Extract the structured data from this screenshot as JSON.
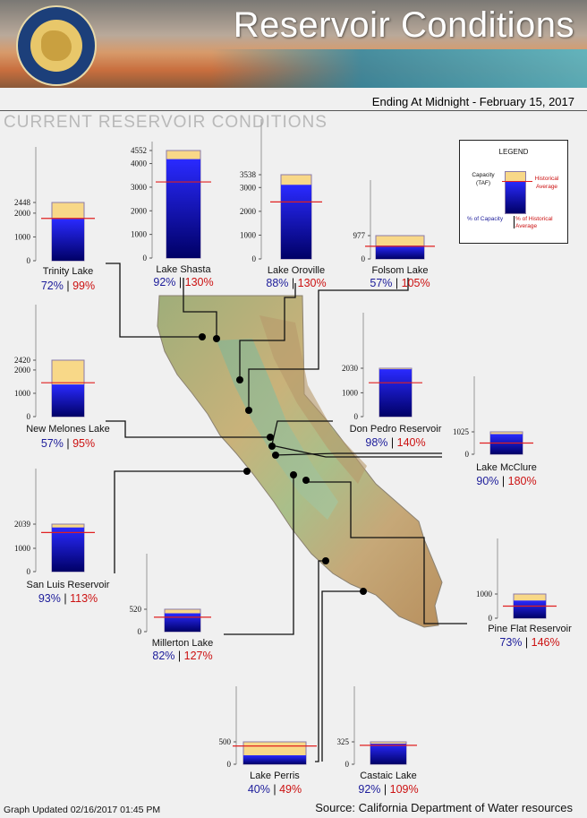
{
  "header": {
    "title": "Reservoir Conditions",
    "date_line": "Ending At Midnight - February 15, 2017"
  },
  "subtitle": "CURRENT RESERVOIR CONDITIONS",
  "legend": {
    "title": "LEGEND",
    "capacity_label": "Capacity (TAF)",
    "historical_label": "Historical Average",
    "pct_capacity_label": "% of Capacity",
    "pct_historical_label": "% of Historical Average"
  },
  "chart_data": {
    "type": "bar",
    "unit": "TAF",
    "reservoirs": [
      {
        "name": "Trinity Lake",
        "capacity": 2448,
        "ticks": [
          "2448",
          "2000",
          "1000",
          "0"
        ],
        "pct_capacity": "72%",
        "pct_historical": "99%"
      },
      {
        "name": "Lake Shasta",
        "capacity": 4552,
        "ticks": [
          "4552",
          "4000",
          "3000",
          "2000",
          "1000",
          "0"
        ],
        "pct_capacity": "92%",
        "pct_historical": "130%"
      },
      {
        "name": "Lake Oroville",
        "capacity": 3538,
        "ticks": [
          "3538",
          "3000",
          "2000",
          "1000",
          "0"
        ],
        "pct_capacity": "88%",
        "pct_historical": "130%"
      },
      {
        "name": "Folsom Lake",
        "capacity": 977,
        "ticks": [
          "977",
          "0"
        ],
        "pct_capacity": "57%",
        "pct_historical": "105%"
      },
      {
        "name": "New Melones Lake",
        "capacity": 2420,
        "ticks": [
          "2420",
          "2000",
          "1000",
          "0"
        ],
        "pct_capacity": "57%",
        "pct_historical": "95%"
      },
      {
        "name": "Don Pedro Reservoir",
        "capacity": 2030,
        "ticks": [
          "2030",
          "1000",
          "0"
        ],
        "pct_capacity": "98%",
        "pct_historical": "140%"
      },
      {
        "name": "Lake McClure",
        "capacity": 1025,
        "ticks": [
          "1025",
          "0"
        ],
        "pct_capacity": "90%",
        "pct_historical": "180%"
      },
      {
        "name": "San Luis Reservoir",
        "capacity": 2039,
        "ticks": [
          "2039",
          "1000",
          "0"
        ],
        "pct_capacity": "93%",
        "pct_historical": "113%"
      },
      {
        "name": "Millerton Lake",
        "capacity": 520,
        "ticks": [
          "520",
          "0"
        ],
        "pct_capacity": "82%",
        "pct_historical": "127%"
      },
      {
        "name": "Pine Flat Reservoir",
        "capacity": 1000,
        "ticks": [
          "1000",
          "0"
        ],
        "pct_capacity": "73%",
        "pct_historical": "146%"
      },
      {
        "name": "Lake Perris",
        "capacity": 500,
        "ticks": [
          "500",
          "0"
        ],
        "pct_capacity": "40%",
        "pct_historical": "49%"
      },
      {
        "name": "Castaic Lake",
        "capacity": 325,
        "ticks": [
          "325",
          "0"
        ],
        "pct_capacity": "92%",
        "pct_historical": "109%"
      }
    ]
  },
  "footer": {
    "updated": "Graph Updated 02/16/2017 01:45 PM",
    "source": "Source: California Department of Water resources"
  },
  "colors": {
    "storage_top": "#2a2aff",
    "storage_bottom": "#000066",
    "capacity": "#f8d888",
    "historical": "#e02020",
    "pct_capacity": "#1c1c9a",
    "pct_historical": "#cc1111"
  },
  "icons": {
    "seal": "department-of-water-resources-seal-icon"
  }
}
